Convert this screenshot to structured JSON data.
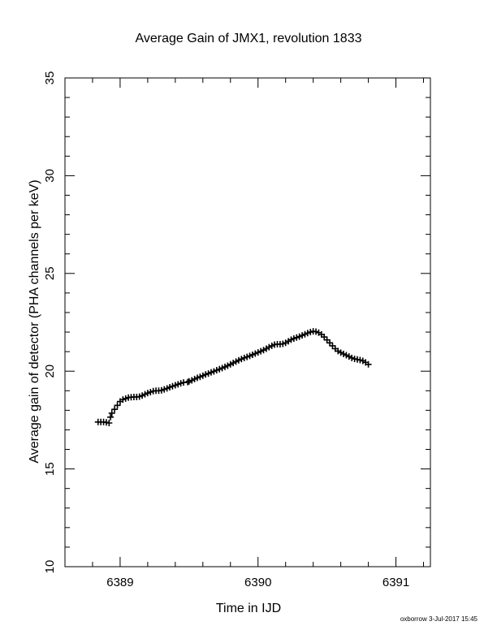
{
  "footer": {
    "text": "oxborrow  3-Jul-2017 15:45"
  },
  "chart_data": {
    "type": "scatter",
    "title": "Average Gain of JMX1, revolution 1833",
    "xlabel": "Time in IJD",
    "ylabel": "Average gain of detector (PHA channels per keV)",
    "xlim": [
      6388.6,
      6391.25
    ],
    "ylim": [
      10,
      35
    ],
    "x_ticks": [
      6389,
      6390,
      6391
    ],
    "x_tick_labels": [
      "6389",
      "6390",
      "6391"
    ],
    "y_ticks": [
      10,
      15,
      20,
      25,
      30,
      35
    ],
    "y_tick_labels": [
      "10",
      "15",
      "20",
      "25",
      "30",
      "35"
    ],
    "marker": "plus",
    "grid": false,
    "series": [
      {
        "color": "#000000",
        "points": [
          [
            6388.84,
            17.4
          ],
          [
            6388.86,
            17.4
          ],
          [
            6388.88,
            17.4
          ],
          [
            6388.9,
            17.38
          ],
          [
            6388.92,
            17.35
          ],
          [
            6388.93,
            17.65
          ],
          [
            6388.94,
            17.85
          ],
          [
            6388.96,
            18.05
          ],
          [
            6388.98,
            18.25
          ],
          [
            6389.0,
            18.45
          ],
          [
            6389.02,
            18.55
          ],
          [
            6389.04,
            18.6
          ],
          [
            6389.06,
            18.65
          ],
          [
            6389.08,
            18.67
          ],
          [
            6389.1,
            18.68
          ],
          [
            6389.12,
            18.68
          ],
          [
            6389.14,
            18.7
          ],
          [
            6389.16,
            18.75
          ],
          [
            6389.18,
            18.82
          ],
          [
            6389.2,
            18.88
          ],
          [
            6389.22,
            18.93
          ],
          [
            6389.24,
            18.98
          ],
          [
            6389.26,
            19.0
          ],
          [
            6389.28,
            19.0
          ],
          [
            6389.3,
            19.02
          ],
          [
            6389.32,
            19.07
          ],
          [
            6389.34,
            19.12
          ],
          [
            6389.36,
            19.18
          ],
          [
            6389.38,
            19.23
          ],
          [
            6389.4,
            19.28
          ],
          [
            6389.42,
            19.33
          ],
          [
            6389.44,
            19.38
          ],
          [
            6389.46,
            19.42
          ],
          [
            6389.49,
            19.44
          ],
          [
            6389.5,
            19.48
          ],
          [
            6389.52,
            19.53
          ],
          [
            6389.54,
            19.6
          ],
          [
            6389.56,
            19.66
          ],
          [
            6389.58,
            19.71
          ],
          [
            6389.6,
            19.77
          ],
          [
            6389.62,
            19.83
          ],
          [
            6389.64,
            19.88
          ],
          [
            6389.66,
            19.94
          ],
          [
            6389.68,
            19.99
          ],
          [
            6389.7,
            20.05
          ],
          [
            6389.72,
            20.1
          ],
          [
            6389.74,
            20.16
          ],
          [
            6389.76,
            20.22
          ],
          [
            6389.78,
            20.28
          ],
          [
            6389.8,
            20.35
          ],
          [
            6389.82,
            20.42
          ],
          [
            6389.84,
            20.49
          ],
          [
            6389.86,
            20.56
          ],
          [
            6389.88,
            20.62
          ],
          [
            6389.9,
            20.68
          ],
          [
            6389.92,
            20.73
          ],
          [
            6389.94,
            20.78
          ],
          [
            6389.96,
            20.84
          ],
          [
            6389.98,
            20.9
          ],
          [
            6390.0,
            20.96
          ],
          [
            6390.02,
            21.02
          ],
          [
            6390.04,
            21.08
          ],
          [
            6390.06,
            21.15
          ],
          [
            6390.08,
            21.23
          ],
          [
            6390.1,
            21.3
          ],
          [
            6390.12,
            21.36
          ],
          [
            6390.14,
            21.38
          ],
          [
            6390.16,
            21.38
          ],
          [
            6390.18,
            21.4
          ],
          [
            6390.2,
            21.45
          ],
          [
            6390.22,
            21.53
          ],
          [
            6390.24,
            21.61
          ],
          [
            6390.26,
            21.67
          ],
          [
            6390.28,
            21.72
          ],
          [
            6390.3,
            21.77
          ],
          [
            6390.32,
            21.83
          ],
          [
            6390.34,
            21.89
          ],
          [
            6390.36,
            21.95
          ],
          [
            6390.38,
            22.0
          ],
          [
            6390.4,
            22.04
          ],
          [
            6390.42,
            22.02
          ],
          [
            6390.44,
            21.97
          ],
          [
            6390.46,
            21.88
          ],
          [
            6390.48,
            21.75
          ],
          [
            6390.5,
            21.6
          ],
          [
            6390.52,
            21.45
          ],
          [
            6390.54,
            21.3
          ],
          [
            6390.56,
            21.15
          ],
          [
            6390.58,
            21.03
          ],
          [
            6390.6,
            20.95
          ],
          [
            6390.62,
            20.88
          ],
          [
            6390.64,
            20.82
          ],
          [
            6390.66,
            20.75
          ],
          [
            6390.68,
            20.68
          ],
          [
            6390.7,
            20.63
          ],
          [
            6390.72,
            20.6
          ],
          [
            6390.74,
            20.57
          ],
          [
            6390.76,
            20.53
          ],
          [
            6390.78,
            20.45
          ],
          [
            6390.8,
            20.35
          ]
        ]
      }
    ]
  }
}
